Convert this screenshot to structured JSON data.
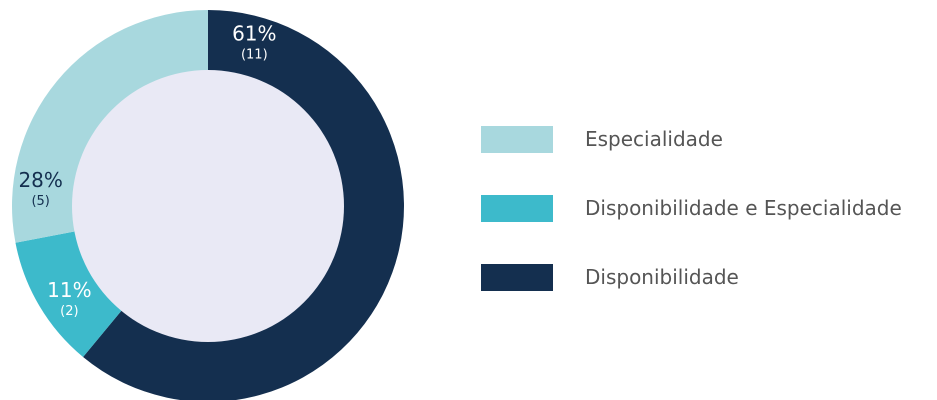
{
  "chart_data": {
    "type": "pie",
    "donut": true,
    "start_angle_deg": 0,
    "direction": "clockwise",
    "slices": [
      {
        "label": "Disponibilidade",
        "percent": 61,
        "percent_label": "61%",
        "count": 11,
        "count_label": "(11)",
        "color": "#142f4f",
        "label_color": "#ffffff"
      },
      {
        "label": "Disponibilidade e Especialidade",
        "percent": 11,
        "percent_label": "11%",
        "count": 2,
        "count_label": "(2)",
        "color": "#3dbacb",
        "label_color": "#ffffff"
      },
      {
        "label": "Especialidade",
        "percent": 28,
        "percent_label": "28%",
        "count": 5,
        "count_label": "(5)",
        "color": "#a8d8de",
        "label_color": "#142f4f"
      }
    ],
    "hole_color": "#e9e9f5",
    "legend": {
      "placement": "right",
      "entries": [
        {
          "label": "Especialidade",
          "color": "#a8d8de"
        },
        {
          "label": "Disponibilidade e Especialidade",
          "color": "#3dbacb"
        },
        {
          "label": "Disponibilidade",
          "color": "#142f4f"
        }
      ]
    }
  }
}
